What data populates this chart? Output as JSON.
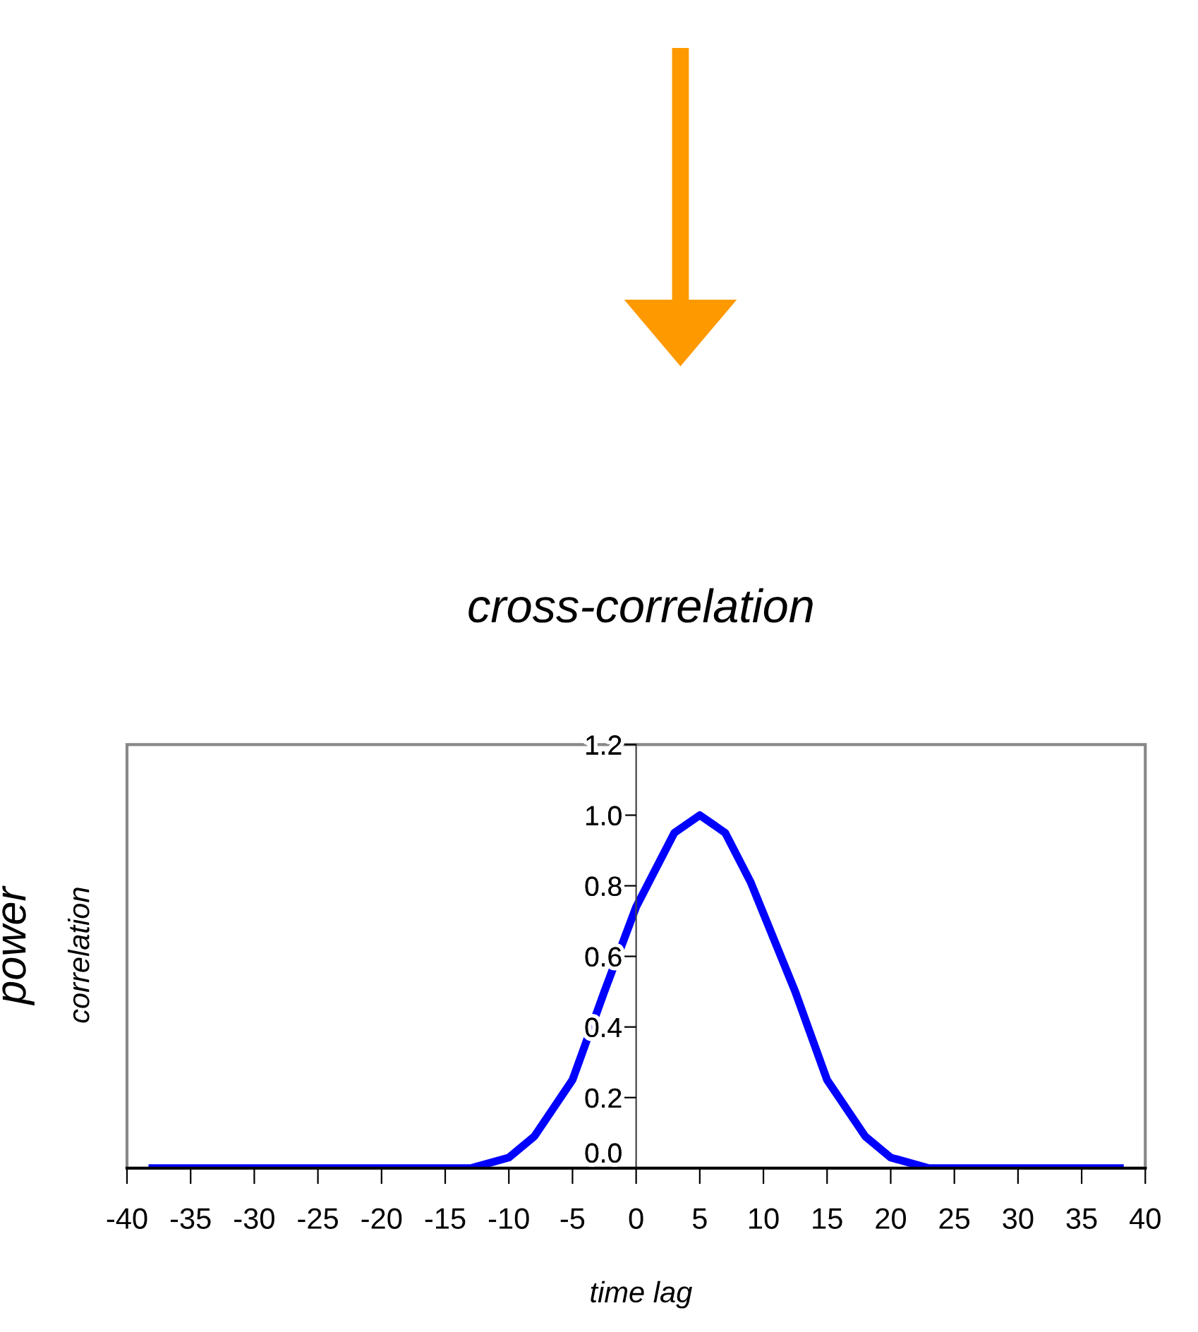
{
  "chart_data": {
    "type": "line",
    "title": "cross-correlation",
    "xlabel": "time lag",
    "ylabel": "correlation",
    "annotations": [
      "power"
    ],
    "xlim": [
      -40,
      40
    ],
    "xticks": [
      -40,
      -35,
      -30,
      -25,
      -20,
      -15,
      -10,
      -5,
      0,
      5,
      10,
      15,
      20,
      25,
      30,
      35,
      40
    ],
    "ylim": [
      0,
      1.2
    ],
    "yticks": [
      {
        "value": 0,
        "label": "0.0"
      },
      0.2,
      0.4,
      0.6,
      0.8,
      {
        "value": 1,
        "label": "1.0"
      },
      1.2
    ],
    "grid": false,
    "legend": false,
    "marker": "none",
    "line_style": "solid",
    "series": [
      {
        "color": "#0000ff",
        "x": [
          -38,
          -13,
          -10,
          -8,
          -5,
          -2.5,
          0,
          1,
          3,
          5,
          7,
          9,
          12.5,
          15,
          18,
          20,
          23,
          38
        ],
        "values": [
          0,
          0,
          0.03,
          0.09,
          0.25,
          0.5,
          0.74,
          0.81,
          0.95,
          1.0,
          0.95,
          0.81,
          0.5,
          0.25,
          0.09,
          0.03,
          0,
          0
        ]
      }
    ]
  }
}
